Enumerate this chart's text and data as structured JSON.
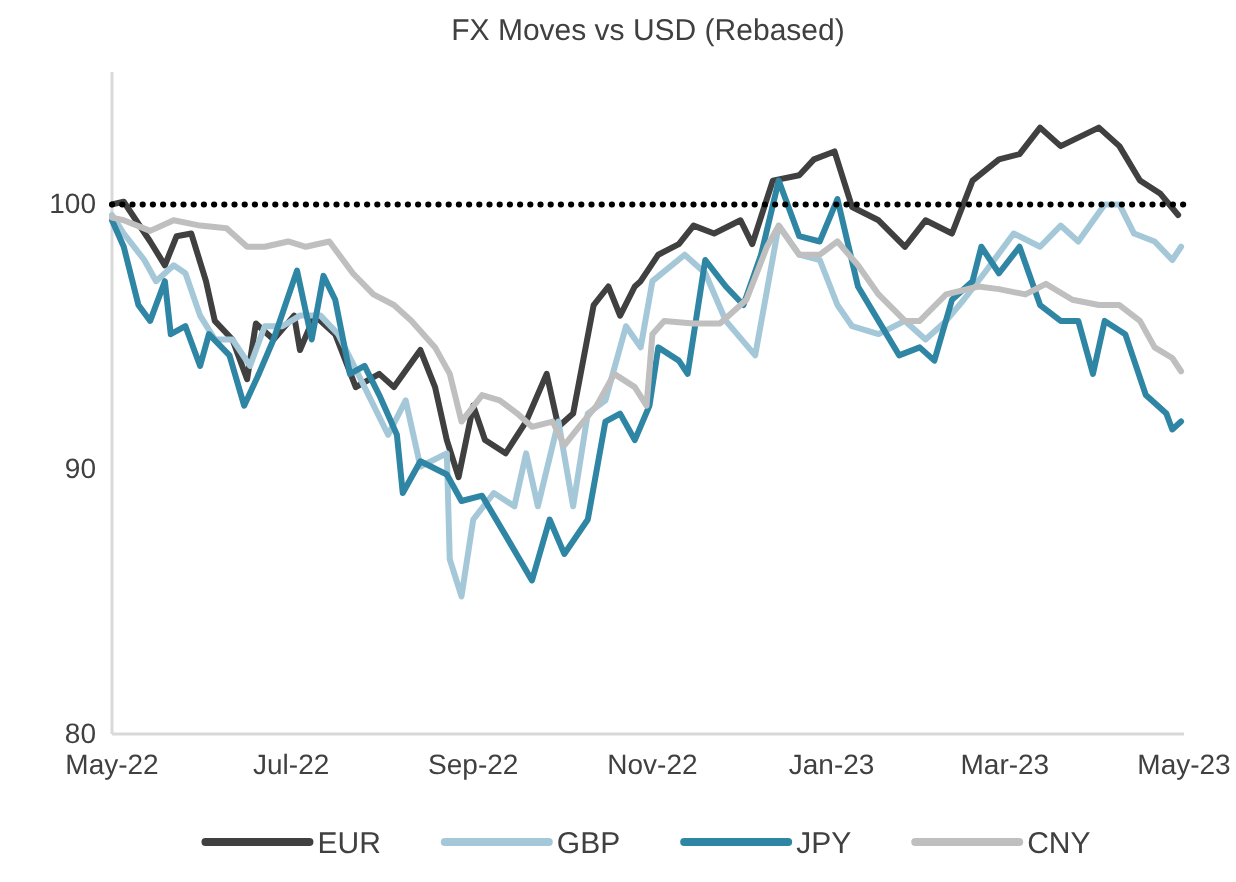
{
  "chart_data": {
    "type": "line",
    "title": "FX Moves vs USD (Rebased)",
    "xlim": [
      "2022-05-01",
      "2023-05-01"
    ],
    "xticks": [
      {
        "value": "2022-05-01",
        "label": "May-22"
      },
      {
        "value": "2022-07-01",
        "label": "Jul-22"
      },
      {
        "value": "2022-09-01",
        "label": "Sep-22"
      },
      {
        "value": "2022-11-01",
        "label": "Nov-22"
      },
      {
        "value": "2023-01-01",
        "label": "Jan-23"
      },
      {
        "value": "2023-03-01",
        "label": "Mar-23"
      },
      {
        "value": "2023-05-01",
        "label": "May-23"
      }
    ],
    "ylim": [
      80,
      105
    ],
    "yticks": [
      80,
      90,
      100
    ],
    "grid": false,
    "legend": "bottom",
    "marker": "none",
    "line_style": "solid",
    "ref_lines": [
      {
        "axis": "y",
        "value": 100,
        "color": "#000000",
        "line_style": "dotted"
      }
    ],
    "series": [
      {
        "name": "EUR",
        "color": "#404040",
        "x": [
          "2022-05-01",
          "2022-05-05",
          "2022-05-14",
          "2022-05-19",
          "2022-05-23",
          "2022-05-28",
          "2022-06-02",
          "2022-06-05",
          "2022-06-11",
          "2022-06-16",
          "2022-06-19",
          "2022-06-25",
          "2022-07-02",
          "2022-07-04",
          "2022-07-09",
          "2022-07-16",
          "2022-07-23",
          "2022-07-31",
          "2022-08-05",
          "2022-08-14",
          "2022-08-19",
          "2022-08-23",
          "2022-08-27",
          "2022-09-01",
          "2022-09-05",
          "2022-09-12",
          "2022-09-19",
          "2022-09-26",
          "2022-09-30",
          "2022-10-05",
          "2022-10-12",
          "2022-10-17",
          "2022-10-21",
          "2022-10-26",
          "2022-10-28",
          "2022-11-03",
          "2022-11-10",
          "2022-11-15",
          "2022-11-22",
          "2022-12-01",
          "2022-12-05",
          "2022-12-12",
          "2022-12-21",
          "2022-12-26",
          "2023-01-02",
          "2023-01-08",
          "2023-01-17",
          "2023-01-26",
          "2023-02-02",
          "2023-02-11",
          "2023-02-18",
          "2023-02-27",
          "2023-03-06",
          "2023-03-13",
          "2023-03-20",
          "2023-04-02",
          "2023-04-09",
          "2023-04-16",
          "2023-04-23",
          "2023-04-29"
        ],
        "values": [
          100,
          100.1,
          98.6,
          97.7,
          98.8,
          98.9,
          97.1,
          95.6,
          94.9,
          93.4,
          95.5,
          94.9,
          95.8,
          94.5,
          95.8,
          95.1,
          93.1,
          93.6,
          93.1,
          94.5,
          93.1,
          91.1,
          89.7,
          92.4,
          91.1,
          90.6,
          91.8,
          93.6,
          91.6,
          92.1,
          96.2,
          96.9,
          95.8,
          96.9,
          97.1,
          98.1,
          98.5,
          99.2,
          98.9,
          99.4,
          98.5,
          100.9,
          101.1,
          101.7,
          102,
          99.9,
          99.4,
          98.4,
          99.4,
          98.9,
          100.9,
          101.7,
          101.9,
          102.9,
          102.2,
          102.9,
          102.2,
          100.9,
          100.4,
          99.6
        ]
      },
      {
        "name": "GBP",
        "color": "#a5c8d9",
        "x": [
          "2022-05-01",
          "2022-05-05",
          "2022-05-12",
          "2022-05-16",
          "2022-05-22",
          "2022-05-26",
          "2022-05-31",
          "2022-06-05",
          "2022-06-11",
          "2022-06-17",
          "2022-06-22",
          "2022-06-28",
          "2022-07-04",
          "2022-07-11",
          "2022-07-17",
          "2022-07-26",
          "2022-08-03",
          "2022-08-09",
          "2022-08-14",
          "2022-08-23",
          "2022-08-24",
          "2022-08-28",
          "2022-09-01",
          "2022-09-08",
          "2022-09-15",
          "2022-09-19",
          "2022-09-23",
          "2022-09-30",
          "2022-10-05",
          "2022-10-10",
          "2022-10-16",
          "2022-10-23",
          "2022-10-28",
          "2022-11-01",
          "2022-11-12",
          "2022-11-19",
          "2022-11-26",
          "2022-12-06",
          "2022-12-14",
          "2022-12-21",
          "2022-12-28",
          "2023-01-03",
          "2023-01-08",
          "2023-01-17",
          "2023-01-26",
          "2023-02-02",
          "2023-02-09",
          "2023-02-15",
          "2023-02-22",
          "2023-03-04",
          "2023-03-13",
          "2023-03-20",
          "2023-03-26",
          "2023-04-04",
          "2023-04-09",
          "2023-04-14",
          "2023-04-21",
          "2023-04-27",
          "2023-04-30"
        ],
        "values": [
          99.6,
          98.9,
          97.9,
          97.1,
          97.7,
          97.4,
          95.8,
          94.9,
          94.9,
          93.9,
          95.4,
          95.4,
          95.8,
          95.8,
          95.1,
          93.1,
          91.3,
          92.6,
          90.1,
          90.6,
          86.6,
          85.2,
          88.1,
          89.1,
          88.6,
          90.6,
          88.6,
          91.8,
          88.6,
          92.1,
          92.6,
          95.4,
          94.6,
          97.1,
          98.1,
          97.4,
          95.6,
          94.3,
          99.2,
          98.1,
          97.9,
          96.2,
          95.4,
          95.1,
          95.6,
          94.9,
          95.6,
          96.4,
          97.4,
          98.9,
          98.4,
          99.2,
          98.6,
          100,
          100,
          98.9,
          98.6,
          97.9,
          98.4
        ]
      },
      {
        "name": "JPY",
        "color": "#2e86a4",
        "x": [
          "2022-05-01",
          "2022-05-05",
          "2022-05-10",
          "2022-05-14",
          "2022-05-19",
          "2022-05-21",
          "2022-05-26",
          "2022-05-31",
          "2022-06-03",
          "2022-06-10",
          "2022-06-15",
          "2022-06-20",
          "2022-06-25",
          "2022-06-29",
          "2022-07-03",
          "2022-07-08",
          "2022-07-12",
          "2022-07-16",
          "2022-07-21",
          "2022-07-26",
          "2022-07-31",
          "2022-08-06",
          "2022-08-08",
          "2022-08-14",
          "2022-08-23",
          "2022-08-28",
          "2022-09-04",
          "2022-09-12",
          "2022-09-21",
          "2022-09-27",
          "2022-10-02",
          "2022-10-10",
          "2022-10-16",
          "2022-10-21",
          "2022-10-26",
          "2022-10-31",
          "2022-11-03",
          "2022-11-10",
          "2022-11-13",
          "2022-11-19",
          "2022-11-26",
          "2022-12-02",
          "2022-12-08",
          "2022-12-14",
          "2022-12-21",
          "2022-12-28",
          "2023-01-03",
          "2023-01-10",
          "2023-01-17",
          "2023-01-24",
          "2023-01-31",
          "2023-02-05",
          "2023-02-11",
          "2023-02-18",
          "2023-02-21",
          "2023-02-27",
          "2023-03-06",
          "2023-03-13",
          "2023-03-20",
          "2023-03-26",
          "2023-03-31",
          "2023-04-04",
          "2023-04-11",
          "2023-04-18",
          "2023-04-25",
          "2023-04-27",
          "2023-04-30"
        ],
        "values": [
          99.4,
          98.4,
          96.2,
          95.6,
          97.1,
          95.1,
          95.4,
          93.9,
          95.1,
          94.3,
          92.4,
          93.6,
          94.9,
          96.2,
          97.5,
          94.9,
          97.3,
          96.4,
          93.6,
          93.9,
          92.8,
          91.3,
          89.1,
          90.3,
          89.8,
          88.8,
          89,
          87.5,
          85.8,
          88.1,
          86.8,
          88.1,
          91.8,
          92.1,
          91.1,
          92.4,
          94.6,
          94.1,
          93.6,
          97.9,
          96.9,
          96.2,
          98.1,
          100.9,
          98.8,
          98.6,
          100.2,
          96.9,
          95.6,
          94.3,
          94.6,
          94.1,
          96.4,
          97.1,
          98.4,
          97.4,
          98.4,
          96.2,
          95.6,
          95.6,
          93.6,
          95.6,
          95.1,
          92.8,
          92.1,
          91.5,
          91.8
        ]
      },
      {
        "name": "CNY",
        "color": "#bfbfbf",
        "x": [
          "2022-05-01",
          "2022-05-05",
          "2022-05-14",
          "2022-05-22",
          "2022-05-31",
          "2022-06-09",
          "2022-06-16",
          "2022-06-22",
          "2022-06-30",
          "2022-07-06",
          "2022-07-14",
          "2022-07-22",
          "2022-07-29",
          "2022-08-05",
          "2022-08-11",
          "2022-08-19",
          "2022-08-24",
          "2022-08-28",
          "2022-09-04",
          "2022-09-10",
          "2022-09-16",
          "2022-09-21",
          "2022-09-28",
          "2022-10-02",
          "2022-10-07",
          "2022-10-13",
          "2022-10-19",
          "2022-10-26",
          "2022-10-30",
          "2022-11-01",
          "2022-11-05",
          "2022-11-15",
          "2022-11-24",
          "2022-12-03",
          "2022-12-10",
          "2022-12-14",
          "2022-12-21",
          "2022-12-28",
          "2023-01-03",
          "2023-01-10",
          "2023-01-17",
          "2023-01-26",
          "2023-01-31",
          "2023-02-09",
          "2023-02-20",
          "2023-02-27",
          "2023-03-08",
          "2023-03-15",
          "2023-03-24",
          "2023-04-02",
          "2023-04-09",
          "2023-04-16",
          "2023-04-21",
          "2023-04-27",
          "2023-04-30"
        ],
        "values": [
          99.5,
          99.4,
          99,
          99.4,
          99.2,
          99.1,
          98.4,
          98.4,
          98.6,
          98.4,
          98.6,
          97.4,
          96.6,
          96.2,
          95.6,
          94.6,
          93.6,
          91.8,
          92.8,
          92.6,
          92.1,
          91.6,
          91.8,
          90.9,
          91.6,
          92.4,
          93.6,
          93.1,
          92.4,
          95.1,
          95.6,
          95.5,
          95.5,
          96.4,
          98.4,
          99.2,
          98.1,
          98.1,
          98.6,
          97.7,
          96.6,
          95.6,
          95.6,
          96.6,
          96.9,
          96.8,
          96.6,
          97,
          96.4,
          96.2,
          96.2,
          95.6,
          94.6,
          94.2,
          93.7
        ]
      }
    ]
  }
}
